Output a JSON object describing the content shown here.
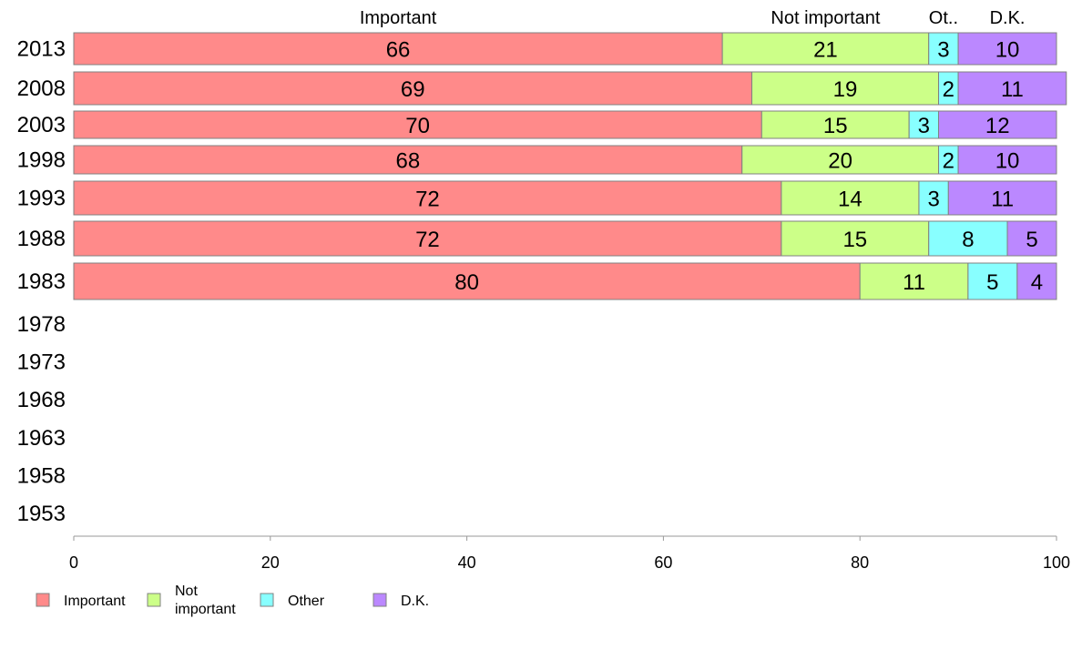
{
  "chart_data": {
    "type": "bar",
    "orientation": "horizontal",
    "stacked": true,
    "categories": [
      "2013",
      "2008",
      "2003",
      "1998",
      "1993",
      "1988",
      "1983",
      "1978",
      "1973",
      "1968",
      "1963",
      "1958",
      "1953"
    ],
    "series": [
      {
        "name": "Important",
        "short": "Important",
        "color": "#ff8a8a",
        "values": [
          66,
          69,
          70,
          68,
          72,
          72,
          80,
          null,
          null,
          null,
          null,
          null,
          null
        ]
      },
      {
        "name": "Not important",
        "short": "Not important",
        "color": "#ccff88",
        "values": [
          21,
          19,
          15,
          20,
          14,
          15,
          11,
          null,
          null,
          null,
          null,
          null,
          null
        ]
      },
      {
        "name": "Other",
        "short": "Ot..",
        "color": "#88ffff",
        "values": [
          3,
          2,
          3,
          2,
          3,
          8,
          5,
          null,
          null,
          null,
          null,
          null,
          null
        ]
      },
      {
        "name": "D.K.",
        "short": "D.K.",
        "color": "#bb88ff",
        "values": [
          10,
          11,
          12,
          10,
          11,
          5,
          4,
          null,
          null,
          null,
          null,
          null,
          null
        ]
      }
    ],
    "xlim": [
      0,
      100
    ],
    "xticks": [
      0,
      20,
      40,
      60,
      80,
      100
    ],
    "grid": false,
    "legend": {
      "placement": "bottom-left",
      "entries": [
        {
          "lines": [
            "Important"
          ],
          "color": "#ff8a8a"
        },
        {
          "lines": [
            "Not",
            "important"
          ],
          "color": "#ccff88"
        },
        {
          "lines": [
            "Other"
          ],
          "color": "#88ffff"
        },
        {
          "lines": [
            "D.K."
          ],
          "color": "#bb88ff"
        }
      ]
    }
  }
}
